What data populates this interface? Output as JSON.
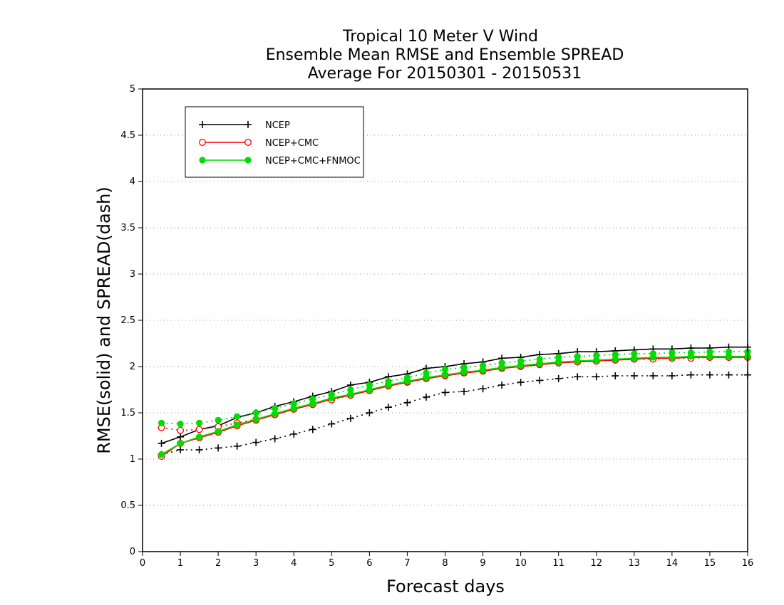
{
  "chart_data": {
    "type": "line",
    "title": [
      "Tropical 10 Meter V Wind",
      "Ensemble Mean RMSE and Ensemble SPREAD",
      "Average For 20150301 - 20150531"
    ],
    "xlabel": "Forecast days",
    "ylabel": "RMSE(solid)  and  SPREAD(dash)",
    "xlim": [
      0,
      16
    ],
    "ylim": [
      0,
      5
    ],
    "xticks": [
      "0",
      "1",
      "2",
      "3",
      "4",
      "5",
      "6",
      "7",
      "8",
      "9",
      "10",
      "11",
      "12",
      "13",
      "14",
      "15",
      "16"
    ],
    "yticks": [
      "0",
      "0.5",
      "1",
      "1.5",
      "2",
      "2.5",
      "3",
      "3.5",
      "4",
      "4.5",
      "5"
    ],
    "grid": "horizontal dotted",
    "legend_position": "top-left",
    "x": [
      0.5,
      1,
      1.5,
      2,
      2.5,
      3,
      3.5,
      4,
      4.5,
      5,
      5.5,
      6,
      6.5,
      7,
      7.5,
      8,
      8.5,
      9,
      9.5,
      10,
      10.5,
      11,
      11.5,
      12,
      12.5,
      13,
      13.5,
      14,
      14.5,
      15,
      15.5,
      16
    ],
    "series": [
      {
        "name": "NCEP",
        "color": "#000000",
        "marker": "plus",
        "rmse": [
          1.17,
          1.24,
          1.32,
          1.36,
          1.45,
          1.5,
          1.57,
          1.62,
          1.68,
          1.73,
          1.8,
          1.83,
          1.89,
          1.92,
          1.98,
          2.0,
          2.03,
          2.05,
          2.09,
          2.1,
          2.13,
          2.14,
          2.16,
          2.16,
          2.17,
          2.18,
          2.19,
          2.19,
          2.2,
          2.2,
          2.21,
          2.21
        ],
        "spread": [
          1.05,
          1.1,
          1.1,
          1.12,
          1.14,
          1.18,
          1.22,
          1.27,
          1.32,
          1.38,
          1.44,
          1.5,
          1.56,
          1.61,
          1.67,
          1.72,
          1.73,
          1.76,
          1.8,
          1.83,
          1.85,
          1.87,
          1.89,
          1.89,
          1.9,
          1.9,
          1.9,
          1.9,
          1.91,
          1.91,
          1.91,
          1.91
        ]
      },
      {
        "name": "NCEP+CMC",
        "color": "#ff0000",
        "marker": "open-circle",
        "rmse": [
          1.03,
          1.17,
          1.23,
          1.29,
          1.36,
          1.42,
          1.48,
          1.54,
          1.59,
          1.65,
          1.69,
          1.74,
          1.79,
          1.83,
          1.87,
          1.9,
          1.93,
          1.95,
          1.98,
          2.0,
          2.02,
          2.04,
          2.05,
          2.06,
          2.07,
          2.08,
          2.09,
          2.09,
          2.1,
          2.1,
          2.1,
          2.1
        ],
        "spread": [
          1.34,
          1.31,
          1.32,
          1.35,
          1.39,
          1.43,
          1.48,
          1.54,
          1.59,
          1.64,
          1.69,
          1.74,
          1.8,
          1.84,
          1.88,
          1.91,
          1.94,
          1.96,
          1.99,
          2.01,
          2.03,
          2.04,
          2.05,
          2.06,
          2.07,
          2.08,
          2.08,
          2.09,
          2.09,
          2.1,
          2.1,
          2.1
        ]
      },
      {
        "name": "NCEP+CMC+FNMOC",
        "color": "#00dd00",
        "marker": "filled-circle",
        "rmse": [
          1.05,
          1.17,
          1.24,
          1.3,
          1.37,
          1.43,
          1.49,
          1.55,
          1.6,
          1.66,
          1.7,
          1.75,
          1.8,
          1.84,
          1.88,
          1.91,
          1.94,
          1.96,
          1.99,
          2.01,
          2.03,
          2.05,
          2.06,
          2.07,
          2.08,
          2.09,
          2.1,
          2.1,
          2.11,
          2.11,
          2.11,
          2.11
        ],
        "spread": [
          1.39,
          1.38,
          1.39,
          1.42,
          1.46,
          1.5,
          1.55,
          1.6,
          1.65,
          1.7,
          1.75,
          1.8,
          1.84,
          1.88,
          1.93,
          1.97,
          1.99,
          2.01,
          2.04,
          2.06,
          2.08,
          2.1,
          2.11,
          2.12,
          2.13,
          2.14,
          2.14,
          2.15,
          2.15,
          2.16,
          2.16,
          2.16
        ]
      }
    ]
  }
}
